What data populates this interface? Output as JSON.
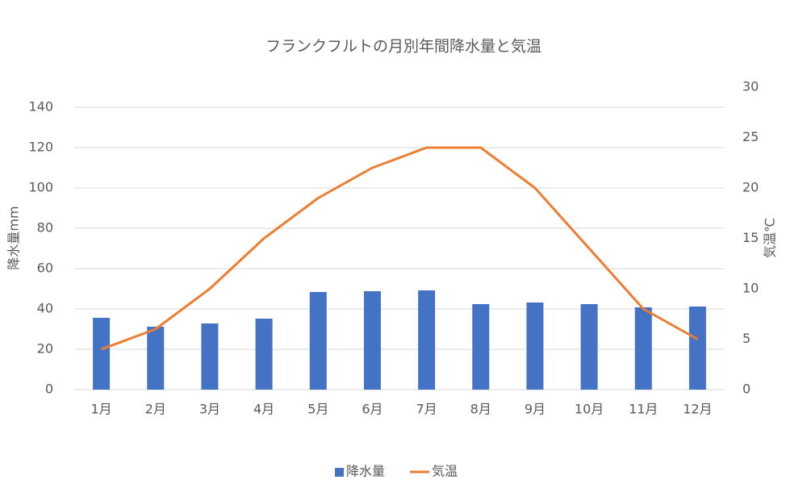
{
  "chart_data": {
    "type": "bar-line",
    "title": "フランクフルトの月別年間降水量と気温",
    "y_label": "降水量mm",
    "y2_label": "気温℃",
    "categories": [
      "1月",
      "2月",
      "3月",
      "4月",
      "5月",
      "6月",
      "7月",
      "8月",
      "9月",
      "10月",
      "11月",
      "12月"
    ],
    "series": [
      {
        "name": "降水量",
        "type": "bar",
        "color": "#4472c4",
        "values": [
          35.6,
          31.2,
          32.8,
          35.2,
          48.4,
          48.8,
          49.2,
          42.4,
          43.2,
          42.4,
          40.8,
          41.2
        ]
      },
      {
        "name": "気温",
        "type": "line",
        "axis": "y2",
        "color": "#ed7d31",
        "values": [
          4,
          6,
          10,
          15,
          19,
          22,
          24,
          24,
          20,
          14,
          8,
          5
        ]
      }
    ],
    "ylim": [
      0,
      150
    ],
    "yticks": [
      0,
      20,
      40,
      60,
      80,
      100,
      120,
      140
    ],
    "y2lim": [
      0,
      30
    ],
    "y2ticks": [
      0,
      5,
      10,
      15,
      20,
      25,
      30
    ],
    "grid": true,
    "legend": "bottom"
  }
}
